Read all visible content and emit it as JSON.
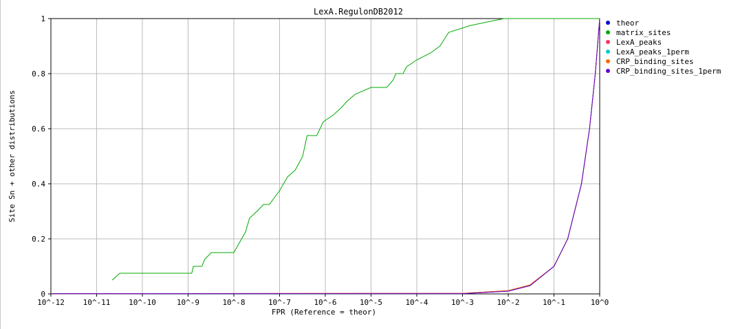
{
  "chart_data": {
    "type": "line",
    "title": "LexA.RegulonDB2012",
    "xlabel": "FPR (Reference = theor)",
    "ylabel": "Site Sn + other distributions",
    "x_scale": "log10",
    "xlim": [
      1e-12,
      1
    ],
    "ylim": [
      0,
      1
    ],
    "grid": true,
    "legend_position": "right",
    "x_tick_labels": [
      "10^-12",
      "10^-11",
      "10^-10",
      "10^-9",
      "10^-8",
      "10^-7",
      "10^-6",
      "10^-5",
      "10^-4",
      "10^-3",
      "10^-2",
      "10^-1",
      "10^0"
    ],
    "y_tick_labels": [
      "0",
      "0.2",
      "0.4",
      "0.6",
      "0.8",
      "1"
    ],
    "y_ticks": [
      0,
      0.2,
      0.4,
      0.6,
      0.8,
      1
    ],
    "series": [
      {
        "name": "theor",
        "color": "#0000cc",
        "points": [
          [
            1e-12,
            0.001
          ],
          [
            0.001,
            0.001
          ],
          [
            0.01,
            0.01
          ],
          [
            0.03,
            0.03
          ],
          [
            0.1,
            0.1
          ],
          [
            0.2,
            0.2
          ],
          [
            0.4,
            0.4
          ],
          [
            0.6,
            0.6
          ],
          [
            0.8,
            0.8
          ],
          [
            1,
            1
          ]
        ]
      },
      {
        "name": "matrix_sites",
        "color": "#00aa00",
        "points": [
          [
            2.2e-11,
            0.05
          ],
          [
            3.2e-11,
            0.075
          ],
          [
            1.2e-09,
            0.075
          ],
          [
            1.3e-09,
            0.1
          ],
          [
            2e-09,
            0.1
          ],
          [
            2.3e-09,
            0.125
          ],
          [
            3.2e-09,
            0.15
          ],
          [
            1e-08,
            0.15
          ],
          [
            1.8e-08,
            0.225
          ],
          [
            2.2e-08,
            0.275
          ],
          [
            3.2e-08,
            0.3
          ],
          [
            4.5e-08,
            0.325
          ],
          [
            6e-08,
            0.325
          ],
          [
            1e-07,
            0.375
          ],
          [
            1.5e-07,
            0.425
          ],
          [
            2.2e-07,
            0.45
          ],
          [
            3.2e-07,
            0.5
          ],
          [
            4e-07,
            0.575
          ],
          [
            6.5e-07,
            0.575
          ],
          [
            9e-07,
            0.625
          ],
          [
            1.5e-06,
            0.65
          ],
          [
            2.2e-06,
            0.675
          ],
          [
            3e-06,
            0.7
          ],
          [
            4.5e-06,
            0.725
          ],
          [
            1e-05,
            0.75
          ],
          [
            2.2e-05,
            0.75
          ],
          [
            3e-05,
            0.775
          ],
          [
            3.5e-05,
            0.8
          ],
          [
            5e-05,
            0.8
          ],
          [
            6e-05,
            0.825
          ],
          [
            0.0001,
            0.85
          ],
          [
            0.0002,
            0.875
          ],
          [
            0.00032,
            0.9
          ],
          [
            0.0005,
            0.95
          ],
          [
            0.0015,
            0.975
          ],
          [
            0.008,
            1.0
          ],
          [
            1,
            1.0
          ]
        ]
      },
      {
        "name": "LexA_peaks",
        "color": "#ff3366",
        "points": [
          [
            1e-12,
            0.001
          ],
          [
            0.001,
            0.002
          ],
          [
            0.01,
            0.012
          ],
          [
            0.03,
            0.032
          ],
          [
            0.1,
            0.1
          ],
          [
            0.2,
            0.2
          ],
          [
            0.4,
            0.4
          ],
          [
            0.6,
            0.6
          ],
          [
            0.8,
            0.8
          ],
          [
            1,
            1
          ]
        ]
      },
      {
        "name": "LexA_peaks_1perm",
        "color": "#00cccc",
        "points": [
          [
            1e-12,
            0.001
          ],
          [
            0.001,
            0.001
          ],
          [
            0.01,
            0.011
          ],
          [
            0.03,
            0.031
          ],
          [
            0.1,
            0.1
          ],
          [
            0.2,
            0.2
          ],
          [
            0.4,
            0.4
          ],
          [
            0.6,
            0.6
          ],
          [
            0.8,
            0.8
          ],
          [
            1,
            1
          ]
        ]
      },
      {
        "name": "CRP_binding_sites",
        "color": "#ff6600",
        "points": [
          [
            1e-12,
            0.001
          ],
          [
            0.001,
            0.002
          ],
          [
            0.01,
            0.012
          ],
          [
            0.03,
            0.033
          ],
          [
            0.1,
            0.1
          ],
          [
            0.2,
            0.2
          ],
          [
            0.4,
            0.4
          ],
          [
            0.6,
            0.6
          ],
          [
            0.8,
            0.8
          ],
          [
            1,
            1
          ]
        ]
      },
      {
        "name": "CRP_binding_sites_1perm",
        "color": "#6600cc",
        "points": [
          [
            1e-12,
            0.001
          ],
          [
            0.001,
            0.001
          ],
          [
            0.01,
            0.01
          ],
          [
            0.03,
            0.03
          ],
          [
            0.1,
            0.1
          ],
          [
            0.2,
            0.2
          ],
          [
            0.4,
            0.4
          ],
          [
            0.6,
            0.6
          ],
          [
            0.8,
            0.8
          ],
          [
            1,
            1
          ]
        ]
      }
    ]
  }
}
